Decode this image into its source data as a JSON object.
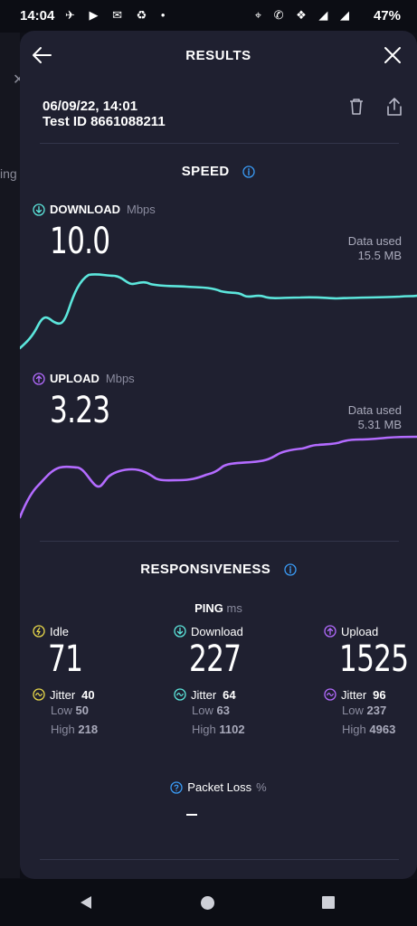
{
  "status_bar": {
    "time": "14:04",
    "battery": "47%"
  },
  "background_app": {
    "peek_text": "ing"
  },
  "header": {
    "title": "RESULTS"
  },
  "test": {
    "datetime": "06/09/22, 14:01",
    "test_id": "Test ID 8661088211"
  },
  "speed": {
    "title": "SPEED",
    "download": {
      "label": "DOWNLOAD",
      "unit": "Mbps",
      "value": "10.0",
      "data_used_label": "Data used",
      "data_used_value": "15.5 MB",
      "color": "#5ce6dc"
    },
    "upload": {
      "label": "UPLOAD",
      "unit": "Mbps",
      "value": "3.23",
      "data_used_label": "Data used",
      "data_used_value": "5.31 MB",
      "color": "#b36bff"
    }
  },
  "responsiveness": {
    "title": "RESPONSIVENESS",
    "ping_label": "PING",
    "ping_unit": "ms",
    "columns": [
      {
        "label": "Idle",
        "value": "71",
        "jitter_label": "Jitter",
        "jitter": "40",
        "low_label": "Low",
        "low": "50",
        "high_label": "High",
        "high": "218",
        "color": "#e8d84a"
      },
      {
        "label": "Download",
        "value": "227",
        "jitter_label": "Jitter",
        "jitter": "64",
        "low_label": "Low",
        "low": "63",
        "high_label": "High",
        "high": "1102",
        "color": "#5ce6dc"
      },
      {
        "label": "Upload",
        "value": "1525",
        "jitter_label": "Jitter",
        "jitter": "96",
        "low_label": "Low",
        "low": "237",
        "high_label": "High",
        "high": "4963",
        "color": "#b36bff"
      }
    ],
    "packet_loss_label": "Packet Loss",
    "packet_loss_unit": "%"
  },
  "colors": {
    "accent_blue": "#3a9bf5",
    "sheet_bg": "#1f2030"
  }
}
